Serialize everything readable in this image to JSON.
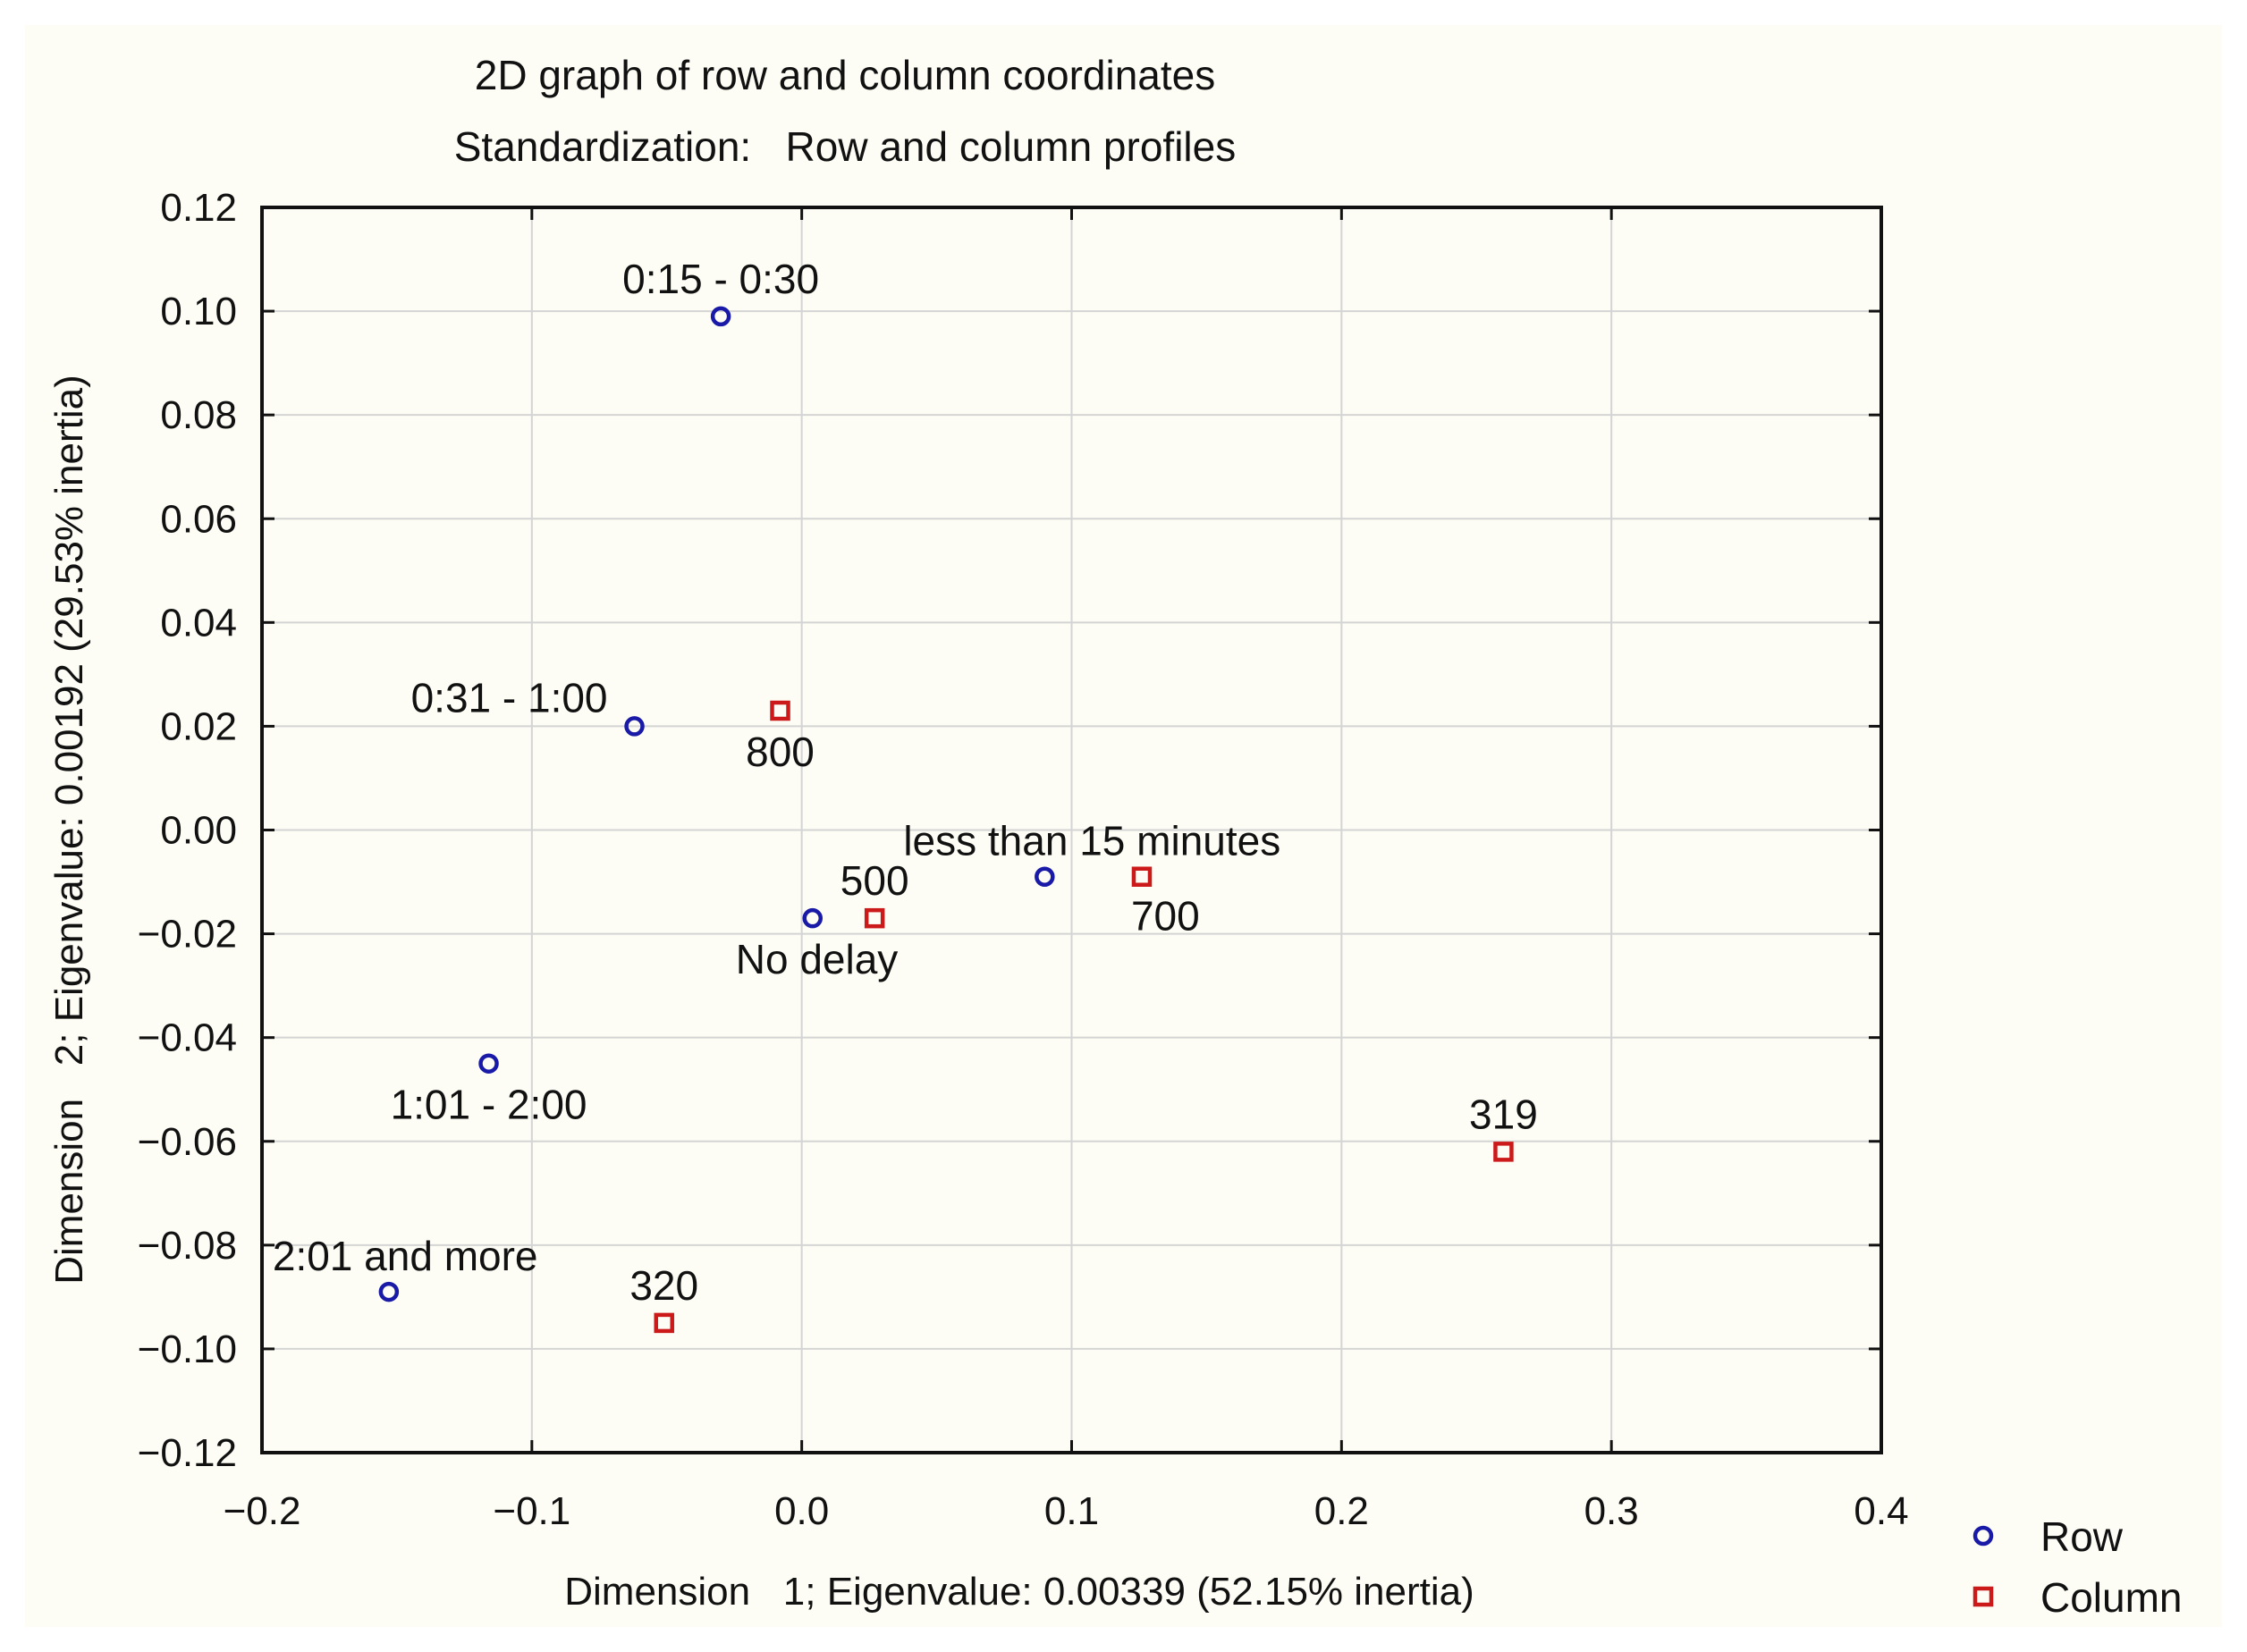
{
  "chart_data": {
    "type": "scatter",
    "title": "2D graph of row and column coordinates",
    "subtitle": "Standardization:   Row and column profiles",
    "xlabel": "Dimension   1; Eigenvalue: 0.00339 (52.15% inertia)",
    "ylabel": "Dimension   2; Eigenvalue: 0.00192 (29.53% inertia)",
    "xlim": [
      -0.2,
      0.4
    ],
    "ylim": [
      -0.12,
      0.12
    ],
    "x_ticks": [
      -0.2,
      -0.1,
      0.0,
      0.1,
      0.2,
      0.3,
      0.4
    ],
    "x_tick_labels": [
      "−0.2",
      "−0.1",
      "0.0",
      "0.1",
      "0.2",
      "0.3",
      "0.4"
    ],
    "y_ticks": [
      0.12,
      0.1,
      0.08,
      0.06,
      0.04,
      0.02,
      0.0,
      -0.02,
      -0.04,
      -0.06,
      -0.08,
      -0.1,
      -0.12
    ],
    "y_tick_labels": [
      "0.12",
      "0.10",
      "0.08",
      "0.06",
      "0.04",
      "0.02",
      "0.00",
      "−0.02",
      "−0.04",
      "−0.06",
      "−0.08",
      "−0.10",
      "−0.12"
    ],
    "grid": true,
    "legend_position": "bottom-right",
    "series": [
      {
        "name": "Row",
        "marker": "circle",
        "color": "#1a1aa8",
        "points": [
          {
            "label": "0:15 - 0:30",
            "x": -0.03,
            "y": 0.099,
            "label_pos": "above"
          },
          {
            "label": "0:31 - 1:00",
            "x": -0.062,
            "y": 0.02,
            "label_pos": "upper-left"
          },
          {
            "label": "less than 15 minutes",
            "x": 0.09,
            "y": -0.009,
            "label_pos": "upper-right"
          },
          {
            "label": "No delay",
            "x": 0.004,
            "y": -0.017,
            "label_pos": "lower-right"
          },
          {
            "label": "1:01 - 2:00",
            "x": -0.116,
            "y": -0.045,
            "label_pos": "below"
          },
          {
            "label": "2:01 and more",
            "x": -0.153,
            "y": -0.089,
            "label_pos": "upper-right"
          }
        ]
      },
      {
        "name": "Column",
        "marker": "square",
        "color": "#cc1a1a",
        "points": [
          {
            "label": "800",
            "x": -0.008,
            "y": 0.023,
            "label_pos": "below"
          },
          {
            "label": "500",
            "x": 0.027,
            "y": -0.017,
            "label_pos": "above"
          },
          {
            "label": "700",
            "x": 0.126,
            "y": -0.009,
            "label_pos": "below-right"
          },
          {
            "label": "319",
            "x": 0.26,
            "y": -0.062,
            "label_pos": "above"
          },
          {
            "label": "320",
            "x": -0.051,
            "y": -0.095,
            "label_pos": "above"
          }
        ]
      }
    ]
  }
}
